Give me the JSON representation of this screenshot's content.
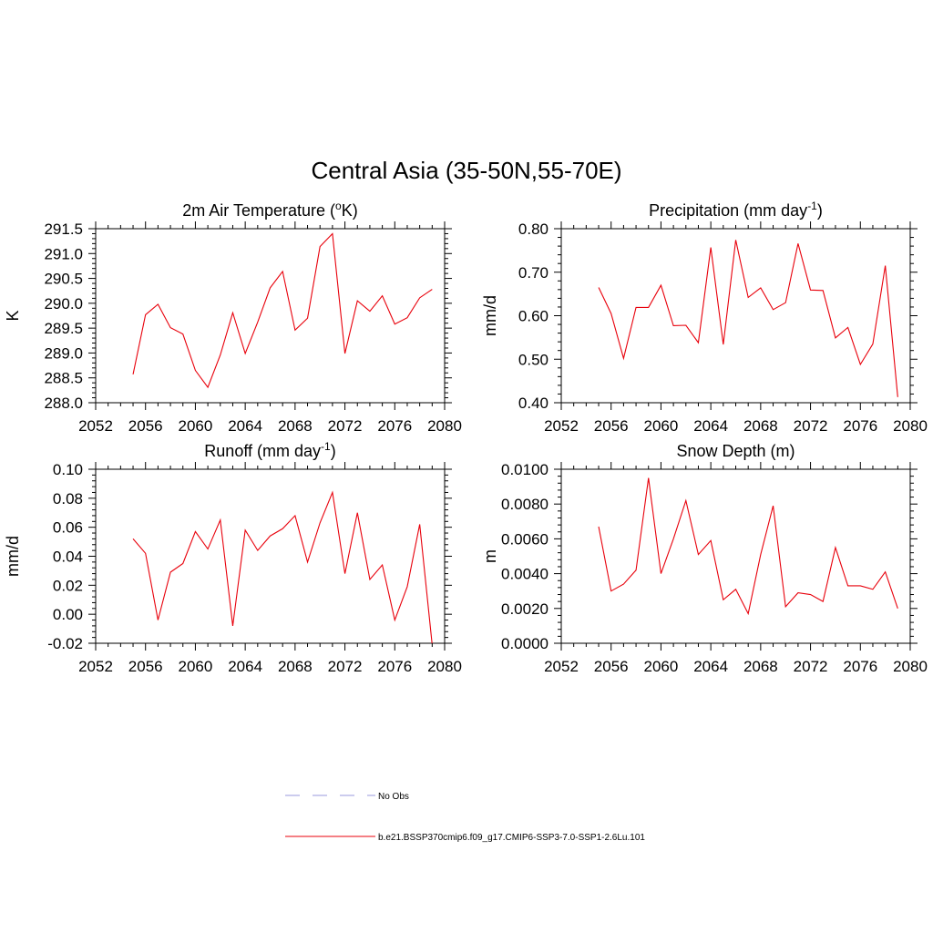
{
  "figure": {
    "title": "Central Asia (35-50N,55-70E)"
  },
  "colors": {
    "series": "#e8000b",
    "obs": "#9999dd",
    "axis": "#000000"
  },
  "legend": {
    "items": [
      {
        "label": "No Obs",
        "style": "dashed",
        "color": "#9999dd"
      },
      {
        "label": "b.e21.BSSP370cmip6.f09_g17.CMIP6-SSP3-7.0-SSP1-2.6Lu.101",
        "style": "solid",
        "color": "#e8000b"
      }
    ]
  },
  "chart_data": [
    {
      "type": "line",
      "title_main": "2m Air Temperature (",
      "title_sup": "o",
      "title_tail": "K)",
      "ylabel": "K",
      "xlim": [
        2052,
        2080
      ],
      "ylim": [
        288.0,
        291.5
      ],
      "xticks": [
        "2052",
        "2056",
        "2060",
        "2064",
        "2068",
        "2072",
        "2076",
        "2080"
      ],
      "yticks": [
        "288.0",
        "288.5",
        "289.0",
        "289.5",
        "290.0",
        "290.5",
        "291.0",
        "291.5"
      ],
      "x": [
        2055,
        2056,
        2057,
        2058,
        2059,
        2060,
        2061,
        2062,
        2063,
        2064,
        2065,
        2066,
        2067,
        2068,
        2069,
        2070,
        2071,
        2072,
        2073,
        2074,
        2075,
        2076,
        2077,
        2078,
        2079
      ],
      "values": [
        288.57,
        289.77,
        289.98,
        289.51,
        289.38,
        288.65,
        288.31,
        288.96,
        289.81,
        288.99,
        289.62,
        290.31,
        290.64,
        289.46,
        289.7,
        291.14,
        291.4,
        288.99,
        290.05,
        289.84,
        290.15,
        289.58,
        289.71,
        290.11,
        290.28
      ]
    },
    {
      "type": "line",
      "title_main": "Precipitation (mm day",
      "title_sup": "-1",
      "title_tail": ")",
      "ylabel": "mm/d",
      "xlim": [
        2052,
        2080
      ],
      "ylim": [
        0.4,
        0.8
      ],
      "xticks": [
        "2052",
        "2056",
        "2060",
        "2064",
        "2068",
        "2072",
        "2076",
        "2080"
      ],
      "yticks": [
        "0.40",
        "0.50",
        "0.60",
        "0.70",
        "0.80"
      ],
      "x": [
        2055,
        2056,
        2057,
        2058,
        2059,
        2060,
        2061,
        2062,
        2063,
        2064,
        2065,
        2066,
        2067,
        2068,
        2069,
        2070,
        2071,
        2072,
        2073,
        2074,
        2075,
        2076,
        2077,
        2078,
        2079
      ],
      "values": [
        0.665,
        0.605,
        0.502,
        0.619,
        0.619,
        0.67,
        0.577,
        0.578,
        0.538,
        0.757,
        0.534,
        0.774,
        0.642,
        0.664,
        0.614,
        0.63,
        0.766,
        0.659,
        0.658,
        0.549,
        0.573,
        0.488,
        0.535,
        0.715,
        0.413
      ]
    },
    {
      "type": "line",
      "title_main": "Runoff (mm day",
      "title_sup": "-1",
      "title_tail": ")",
      "ylabel": "mm/d",
      "xlim": [
        2052,
        2080
      ],
      "ylim": [
        -0.02,
        0.1
      ],
      "xticks": [
        "2052",
        "2056",
        "2060",
        "2064",
        "2068",
        "2072",
        "2076",
        "2080"
      ],
      "yticks": [
        "-0.02",
        "0.00",
        "0.02",
        "0.04",
        "0.06",
        "0.08",
        "0.10"
      ],
      "x": [
        2055,
        2056,
        2057,
        2058,
        2059,
        2060,
        2061,
        2062,
        2063,
        2064,
        2065,
        2066,
        2067,
        2068,
        2069,
        2070,
        2071,
        2072,
        2073,
        2074,
        2075,
        2076,
        2077,
        2078,
        2079
      ],
      "values": [
        0.052,
        0.042,
        -0.004,
        0.029,
        0.035,
        0.057,
        0.045,
        0.065,
        -0.008,
        0.058,
        0.044,
        0.054,
        0.059,
        0.068,
        0.036,
        0.063,
        0.084,
        0.028,
        0.07,
        0.024,
        0.034,
        -0.004,
        0.019,
        0.062,
        -0.021
      ]
    },
    {
      "type": "line",
      "title_main": "Snow Depth (m)",
      "title_sup": "",
      "title_tail": "",
      "ylabel": "m",
      "xlim": [
        2052,
        2080
      ],
      "ylim": [
        0.0,
        0.01
      ],
      "xticks": [
        "2052",
        "2056",
        "2060",
        "2064",
        "2068",
        "2072",
        "2076",
        "2080"
      ],
      "yticks": [
        "0.0000",
        "0.0020",
        "0.0040",
        "0.0060",
        "0.0080",
        "0.0100"
      ],
      "x": [
        2055,
        2056,
        2057,
        2058,
        2059,
        2060,
        2061,
        2062,
        2063,
        2064,
        2065,
        2066,
        2067,
        2068,
        2069,
        2070,
        2071,
        2072,
        2073,
        2074,
        2075,
        2076,
        2077,
        2078,
        2079
      ],
      "values": [
        0.0067,
        0.003,
        0.0034,
        0.0042,
        0.0095,
        0.004,
        0.006,
        0.0082,
        0.0051,
        0.0059,
        0.0025,
        0.0031,
        0.0017,
        0.0051,
        0.0079,
        0.0021,
        0.0029,
        0.0028,
        0.0024,
        0.0055,
        0.0033,
        0.0033,
        0.0031,
        0.0041,
        0.002
      ]
    }
  ]
}
